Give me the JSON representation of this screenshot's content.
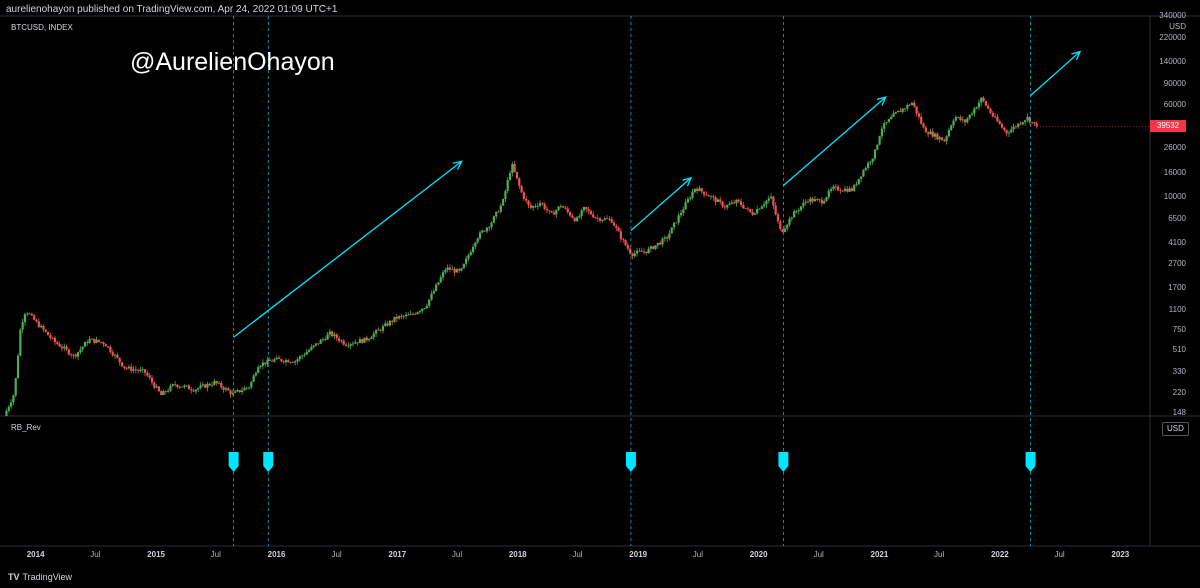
{
  "header": {
    "publisher": "aurelienohayon published on TradingView.com, Apr 24, 2022 01:09 UTC+1",
    "symbol": "BTCUSD, INDEX",
    "watermark": "@AurelienOhayon"
  },
  "indicator": {
    "name": "RB_Rev",
    "badge": "USD"
  },
  "footer": {
    "logo_text": "TradingView",
    "logo_icon": "tradingview-logo-icon"
  },
  "colors": {
    "up": "#26a69a",
    "candle_up": "#4caf50",
    "candle_down": "#ef5350",
    "cyan": "#00e5ff",
    "last_price_bg": "#f23645",
    "divider": "#2a2e39"
  },
  "chart_data": {
    "type": "candlestick",
    "title": "BTCUSD, INDEX",
    "timeframe": "weekly",
    "y_scale": "log",
    "y_unit": "USD",
    "ylim": [
      140,
      340000
    ],
    "y_ticks": [
      "340000",
      "220000",
      "140000",
      "90000",
      "60000",
      "39532",
      "26000",
      "16000",
      "10000",
      "6500",
      "4100",
      "2700",
      "1700",
      "1100",
      "750",
      "510",
      "330",
      "220",
      "148"
    ],
    "y_tick_values": [
      340000,
      220000,
      140000,
      90000,
      60000,
      39532,
      26000,
      16000,
      10000,
      6500,
      4100,
      2700,
      1700,
      1100,
      750,
      510,
      330,
      220,
      148
    ],
    "last_price": 39532,
    "x_ticks": [
      "2014",
      "Jul",
      "2015",
      "Jul",
      "2016",
      "Jul",
      "2017",
      "Jul",
      "2018",
      "Jul",
      "2019",
      "Jul",
      "2020",
      "Jul",
      "2021",
      "Jul",
      "2022",
      "Jul",
      "2023"
    ],
    "x_tick_dates": [
      "2014-01-01",
      "2014-07-01",
      "2015-01-01",
      "2015-07-01",
      "2016-01-01",
      "2016-07-01",
      "2017-01-01",
      "2017-07-01",
      "2018-01-01",
      "2018-07-01",
      "2019-01-01",
      "2019-07-01",
      "2020-01-01",
      "2020-07-01",
      "2021-01-01",
      "2021-07-01",
      "2022-01-01",
      "2022-07-01",
      "2023-01-01"
    ],
    "xlim": [
      "2013-09-15",
      "2023-04-01"
    ],
    "price_path": [
      [
        "2013-10-01",
        140
      ],
      [
        "2013-11-01",
        220
      ],
      [
        "2013-11-20",
        800
      ],
      [
        "2013-12-05",
        1100
      ],
      [
        "2014-01-01",
        900
      ],
      [
        "2014-03-01",
        600
      ],
      [
        "2014-05-01",
        450
      ],
      [
        "2014-06-15",
        620
      ],
      [
        "2014-08-01",
        580
      ],
      [
        "2014-10-01",
        360
      ],
      [
        "2014-12-01",
        330
      ],
      [
        "2015-01-20",
        210
      ],
      [
        "2015-03-01",
        260
      ],
      [
        "2015-05-01",
        235
      ],
      [
        "2015-07-01",
        270
      ],
      [
        "2015-08-25",
        215
      ],
      [
        "2015-10-15",
        250
      ],
      [
        "2015-11-10",
        380
      ],
      [
        "2016-01-01",
        420
      ],
      [
        "2016-03-01",
        410
      ],
      [
        "2016-06-15",
        700
      ],
      [
        "2016-08-01",
        570
      ],
      [
        "2016-10-01",
        620
      ],
      [
        "2017-01-01",
        950
      ],
      [
        "2017-02-15",
        1000
      ],
      [
        "2017-04-01",
        1200
      ],
      [
        "2017-06-01",
        2500
      ],
      [
        "2017-07-15",
        2300
      ],
      [
        "2017-09-01",
        4500
      ],
      [
        "2017-10-15",
        6000
      ],
      [
        "2017-11-20",
        9000
      ],
      [
        "2017-12-17",
        19000
      ],
      [
        "2018-01-15",
        11000
      ],
      [
        "2018-02-10",
        8000
      ],
      [
        "2018-03-15",
        9000
      ],
      [
        "2018-04-15",
        7000
      ],
      [
        "2018-05-15",
        8500
      ],
      [
        "2018-07-01",
        6300
      ],
      [
        "2018-07-25",
        8000
      ],
      [
        "2018-09-01",
        6600
      ],
      [
        "2018-10-15",
        6400
      ],
      [
        "2018-11-20",
        4200
      ],
      [
        "2018-12-15",
        3300
      ],
      [
        "2019-02-01",
        3500
      ],
      [
        "2019-04-01",
        4500
      ],
      [
        "2019-05-15",
        7500
      ],
      [
        "2019-06-26",
        12000
      ],
      [
        "2019-08-01",
        10500
      ],
      [
        "2019-09-25",
        8300
      ],
      [
        "2019-11-01",
        9200
      ],
      [
        "2019-12-15",
        7200
      ],
      [
        "2020-02-10",
        10000
      ],
      [
        "2020-03-12",
        5000
      ],
      [
        "2020-04-15",
        7000
      ],
      [
        "2020-06-01",
        9500
      ],
      [
        "2020-07-15",
        9200
      ],
      [
        "2020-08-15",
        11800
      ],
      [
        "2020-10-15",
        11500
      ],
      [
        "2020-11-15",
        16500
      ],
      [
        "2020-12-20",
        23000
      ],
      [
        "2021-01-10",
        38000
      ],
      [
        "2021-02-20",
        50000
      ],
      [
        "2021-04-14",
        63000
      ],
      [
        "2021-05-20",
        37000
      ],
      [
        "2021-07-20",
        30000
      ],
      [
        "2021-08-20",
        48000
      ],
      [
        "2021-09-20",
        43000
      ],
      [
        "2021-11-10",
        68000
      ],
      [
        "2021-12-15",
        48000
      ],
      [
        "2022-01-24",
        35000
      ],
      [
        "2022-03-28",
        47000
      ],
      [
        "2022-04-24",
        39532
      ]
    ],
    "signals": {
      "name": "RB_Rev",
      "dates": [
        "2015-08-24",
        "2015-12-07",
        "2018-12-10",
        "2020-03-16",
        "2022-04-04"
      ]
    },
    "projection_arrows": [
      {
        "from": [
          "2015-08-24",
          650
        ],
        "to": [
          "2017-07-15",
          20000
        ]
      },
      {
        "from": [
          "2018-12-10",
          5200
        ],
        "to": [
          "2019-06-10",
          14500
        ]
      },
      {
        "from": [
          "2020-03-16",
          12500
        ],
        "to": [
          "2021-01-20",
          70000
        ]
      },
      {
        "from": [
          "2022-04-04",
          72000
        ],
        "to": [
          "2022-09-01",
          170000
        ]
      }
    ]
  }
}
